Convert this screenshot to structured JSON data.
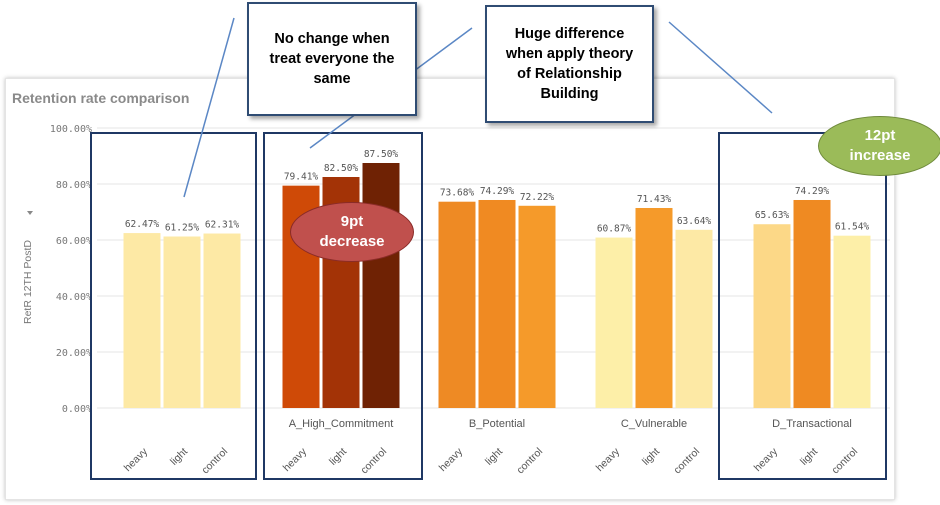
{
  "callouts": {
    "left": "No change when\ntreat everyone the\nsame",
    "middle": "Huge difference\nwhen apply theory\nof Relationship\nBuilding"
  },
  "ovals": {
    "decrease": {
      "text": "9pt\ndecrease",
      "color": "#c0504d"
    },
    "increase": {
      "text": "12pt\nincrease",
      "color": "#9bbb59"
    }
  },
  "colors": {
    "box_border": "#1f3864",
    "callout_line": "#5b87c5"
  },
  "chart_data": {
    "type": "bar",
    "title": "Retention rate comparison",
    "ylabel": "RetR 12TH PostD",
    "ylim": [
      0,
      100
    ],
    "yticks": [
      "0.00%",
      "20.00%",
      "40.00%",
      "60.00%",
      "80.00%",
      "100.00%"
    ],
    "subcategories": [
      "heavy",
      "light",
      "control"
    ],
    "groups": [
      {
        "name": "",
        "values": [
          62.47,
          61.25,
          62.31
        ],
        "labels": [
          "62.47%",
          "61.25%",
          "62.31%"
        ],
        "colors": [
          "#fde9a5",
          "#fde9a5",
          "#fde9a5"
        ]
      },
      {
        "name": "A_High_Commitment",
        "values": [
          79.41,
          82.5,
          87.5
        ],
        "labels": [
          "79.41%",
          "82.50%",
          "87.50%"
        ],
        "colors": [
          "#cf4a07",
          "#a33306",
          "#6f2204"
        ]
      },
      {
        "name": "B_Potential",
        "values": [
          73.68,
          74.29,
          72.22
        ],
        "labels": [
          "73.68%",
          "74.29%",
          "72.22%"
        ],
        "colors": [
          "#ee8a24",
          "#f08a22",
          "#f59a2a"
        ]
      },
      {
        "name": "C_Vulnerable",
        "values": [
          60.87,
          71.43,
          63.64
        ],
        "labels": [
          "60.87%",
          "71.43%",
          "63.64%"
        ],
        "colors": [
          "#fdefa8",
          "#f59a2a",
          "#fde9a5"
        ]
      },
      {
        "name": "D_Transactional",
        "values": [
          65.63,
          74.29,
          61.54
        ],
        "labels": [
          "65.63%",
          "74.29%",
          "61.54%"
        ],
        "colors": [
          "#fcd887",
          "#ef8a22",
          "#fdefa8"
        ]
      }
    ]
  }
}
